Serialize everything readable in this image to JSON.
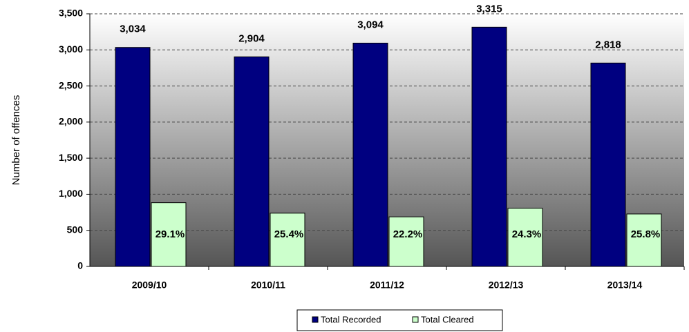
{
  "chart_data": {
    "type": "bar",
    "y_axis_label": "Number of offences",
    "categories": [
      "2009/10",
      "2010/11",
      "2011/12",
      "2012/13",
      "2013/14"
    ],
    "series": [
      {
        "name": "Total Recorded",
        "color": "#000080",
        "values": [
          3034,
          2904,
          3094,
          3315,
          2818
        ],
        "value_labels": [
          "3,034",
          "2,904",
          "3,094",
          "3,315",
          "2,818"
        ]
      },
      {
        "name": "Total Cleared",
        "color": "#ccffcc",
        "values": [
          883,
          738,
          687,
          806,
          727
        ]
      }
    ],
    "annotations": [
      "29.1%",
      "25.4%",
      "22.2%",
      "24.3%",
      "25.8%"
    ],
    "ylim": [
      0,
      3500
    ],
    "yticks": [
      0,
      {
        "value": 500,
        "label": "500"
      },
      {
        "value": 1000,
        "label": "1,000"
      },
      {
        "value": 1500,
        "label": "1,500"
      },
      {
        "value": 2000,
        "label": "2,000"
      },
      {
        "value": 2500,
        "label": "2,500"
      },
      {
        "value": 3000,
        "label": "3,000"
      },
      {
        "value": 3500,
        "label": "3,500"
      }
    ],
    "grid": true,
    "legend": "bottom"
  }
}
